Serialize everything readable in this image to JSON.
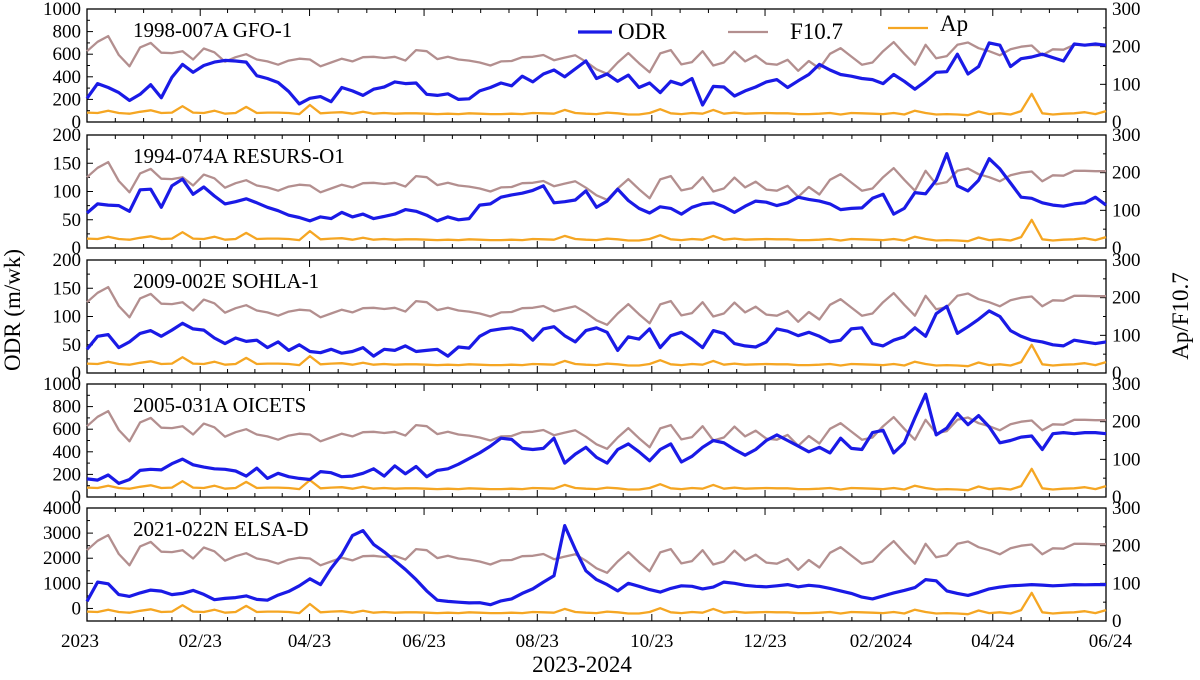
{
  "chart_data": {
    "type": "line",
    "xlabel": "2023-2024",
    "ylabel_left": "ODR (m/wk)",
    "ylabel_right": "Ap/F10.7",
    "x_unit": "weeks since 2023-01-01",
    "xticks": [
      {
        "label": "2023",
        "week": 0
      },
      {
        "label": "02/23",
        "week": 8.7
      },
      {
        "label": "04/23",
        "week": 17.1
      },
      {
        "label": "06/23",
        "week": 25.9
      },
      {
        "label": "08/23",
        "week": 34.6
      },
      {
        "label": "10/23",
        "week": 43.4
      },
      {
        "label": "12/23",
        "week": 52.1
      },
      {
        "label": "02/2024",
        "week": 61.0
      },
      {
        "label": "04/24",
        "week": 69.6
      },
      {
        "label": "06/24",
        "week": 78.3
      }
    ],
    "xlim": [
      0,
      78.3
    ],
    "legend": {
      "placement": "top-right",
      "entries": [
        {
          "name": "ODR",
          "color": "#1a1ae6"
        },
        {
          "name": "F10.7",
          "color": "#b38f8f"
        },
        {
          "name": "Ap",
          "color": "#f5a623"
        }
      ]
    },
    "shared_right_axis": {
      "ylim": [
        0,
        300
      ],
      "ticks": [
        0,
        100,
        200,
        300
      ],
      "series": [
        {
          "name": "F10.7",
          "values": [
            188,
            213,
            228,
            178,
            148,
            198,
            210,
            184,
            183,
            188,
            166,
            195,
            185,
            160,
            172,
            180,
            166,
            161,
            152,
            163,
            168,
            166,
            148,
            158,
            168,
            161,
            172,
            173,
            170,
            173,
            163,
            191,
            188,
            167,
            173,
            166,
            163,
            158,
            150,
            161,
            162,
            172,
            173,
            178,
            164,
            171,
            177,
            160,
            140,
            128,
            158,
            183,
            156,
            132,
            182,
            191,
            153,
            159,
            188,
            150,
            158,
            187,
            161,
            176,
            155,
            152,
            165,
            136,
            162,
            142,
            181,
            196,
            174,
            152,
            158,
            188,
            212,
            181,
            152,
            205,
            169,
            175,
            205,
            211,
            196,
            188,
            177,
            193,
            200,
            203,
            177,
            193,
            192,
            205,
            205,
            204,
            204
          ]
        },
        {
          "name": "Ap",
          "values": [
            25,
            24,
            30,
            24,
            22,
            27,
            31,
            24,
            25,
            42,
            25,
            24,
            30,
            22,
            24,
            40,
            24,
            25,
            25,
            24,
            21,
            45,
            23,
            25,
            26,
            22,
            27,
            22,
            24,
            22,
            23,
            23,
            22,
            21,
            22,
            21,
            23,
            22,
            21,
            21,
            22,
            21,
            24,
            23,
            22,
            32,
            24,
            22,
            21,
            25,
            23,
            20,
            20,
            24,
            34,
            23,
            21,
            24,
            22,
            32,
            22,
            25,
            22,
            23,
            24,
            23,
            23,
            21,
            21,
            22,
            24,
            20,
            24,
            23,
            22,
            21,
            24,
            20,
            30,
            24,
            20,
            21,
            20,
            18,
            28,
            21,
            23,
            20,
            29,
            75,
            23,
            20,
            22,
            23,
            26,
            21,
            29
          ]
        }
      ]
    },
    "panels": [
      {
        "title": "1998-007A GFO-1",
        "ylim": [
          0,
          1000
        ],
        "yticks": [
          0,
          200,
          400,
          600,
          800,
          1000
        ],
        "odr": [
          210,
          340,
          305,
          260,
          190,
          245,
          330,
          215,
          395,
          510,
          440,
          500,
          530,
          545,
          540,
          530,
          410,
          385,
          350,
          270,
          160,
          210,
          225,
          180,
          305,
          275,
          235,
          290,
          310,
          355,
          340,
          345,
          245,
          235,
          250,
          200,
          205,
          275,
          305,
          345,
          320,
          405,
          355,
          425,
          460,
          400,
          470,
          540,
          385,
          425,
          360,
          415,
          305,
          345,
          260,
          360,
          330,
          385,
          150,
          315,
          310,
          230,
          275,
          310,
          355,
          375,
          305,
          365,
          420,
          510,
          460,
          420,
          405,
          385,
          375,
          340,
          420,
          360,
          290,
          360,
          440,
          445,
          600,
          425,
          490,
          700,
          680,
          490,
          560,
          575,
          600,
          570,
          540,
          690,
          680,
          690,
          680
        ]
      },
      {
        "title": "1994-074A RESURS-O1",
        "ylim": [
          0,
          200
        ],
        "yticks": [
          0,
          50,
          100,
          150,
          200
        ],
        "odr": [
          62,
          78,
          76,
          75,
          65,
          103,
          104,
          72,
          110,
          122,
          95,
          108,
          92,
          78,
          82,
          87,
          80,
          72,
          66,
          58,
          54,
          48,
          55,
          52,
          63,
          55,
          60,
          52,
          56,
          60,
          68,
          65,
          58,
          48,
          55,
          50,
          52,
          76,
          78,
          90,
          94,
          97,
          102,
          110,
          80,
          82,
          85,
          101,
          72,
          83,
          104,
          84,
          70,
          62,
          73,
          70,
          60,
          72,
          78,
          80,
          73,
          63,
          74,
          83,
          81,
          75,
          80,
          90,
          86,
          83,
          78,
          68,
          70,
          71,
          88,
          95,
          60,
          70,
          98,
          96,
          120,
          167,
          110,
          101,
          120,
          158,
          140,
          115,
          90,
          88,
          80,
          76,
          74,
          78,
          80,
          90,
          76
        ]
      },
      {
        "title": "2009-002E SOHLA-1",
        "ylim": [
          0,
          200
        ],
        "yticks": [
          0,
          50,
          100,
          150,
          200
        ],
        "odr": [
          42,
          65,
          68,
          45,
          55,
          70,
          75,
          65,
          76,
          88,
          78,
          76,
          62,
          52,
          62,
          56,
          58,
          45,
          55,
          40,
          50,
          38,
          36,
          42,
          35,
          38,
          45,
          30,
          42,
          40,
          48,
          38,
          40,
          42,
          30,
          46,
          44,
          65,
          75,
          78,
          80,
          75,
          58,
          78,
          82,
          66,
          55,
          75,
          80,
          72,
          40,
          64,
          60,
          78,
          45,
          66,
          72,
          60,
          45,
          75,
          70,
          52,
          48,
          46,
          55,
          78,
          74,
          66,
          72,
          65,
          55,
          58,
          78,
          80,
          52,
          48,
          58,
          64,
          80,
          65,
          105,
          118,
          70,
          82,
          95,
          110,
          100,
          75,
          65,
          58,
          55,
          50,
          48,
          58,
          55,
          52,
          55
        ]
      },
      {
        "title": "2005-031A OICETS",
        "ylim": [
          0,
          1000
        ],
        "yticks": [
          0,
          200,
          400,
          600,
          800,
          1000
        ],
        "odr": [
          160,
          150,
          195,
          120,
          155,
          235,
          245,
          240,
          295,
          335,
          285,
          265,
          250,
          245,
          230,
          185,
          255,
          165,
          210,
          180,
          165,
          155,
          225,
          215,
          180,
          185,
          210,
          250,
          185,
          275,
          205,
          270,
          180,
          235,
          250,
          290,
          340,
          390,
          450,
          520,
          510,
          430,
          420,
          430,
          520,
          300,
          380,
          440,
          350,
          300,
          420,
          470,
          400,
          320,
          420,
          470,
          310,
          360,
          440,
          500,
          480,
          420,
          370,
          420,
          500,
          550,
          500,
          450,
          400,
          440,
          390,
          520,
          430,
          420,
          570,
          590,
          390,
          480,
          700,
          910,
          550,
          610,
          740,
          640,
          720,
          620,
          480,
          500,
          530,
          540,
          420,
          560,
          570,
          560,
          570,
          570,
          560
        ]
      },
      {
        "title": "2021-022N ELSA-D",
        "ylim": [
          -500,
          4000
        ],
        "yticks": [
          0,
          1000,
          2000,
          3000,
          4000
        ],
        "odr": [
          280,
          1050,
          980,
          550,
          480,
          620,
          730,
          690,
          550,
          600,
          720,
          560,
          350,
          400,
          430,
          500,
          360,
          330,
          530,
          680,
          900,
          1180,
          950,
          1600,
          2150,
          2900,
          3100,
          2550,
          2250,
          1900,
          1550,
          1150,
          700,
          330,
          280,
          250,
          220,
          230,
          150,
          300,
          380,
          600,
          780,
          1050,
          1300,
          3300,
          2350,
          1500,
          1150,
          950,
          700,
          1000,
          880,
          750,
          650,
          800,
          900,
          880,
          780,
          850,
          1050,
          1000,
          920,
          880,
          860,
          900,
          950,
          860,
          920,
          880,
          800,
          700,
          600,
          450,
          380,
          500,
          620,
          720,
          830,
          1150,
          1100,
          700,
          600,
          520,
          640,
          780,
          850,
          900,
          920,
          950,
          930,
          900,
          920,
          950,
          940,
          950,
          950
        ]
      }
    ]
  }
}
